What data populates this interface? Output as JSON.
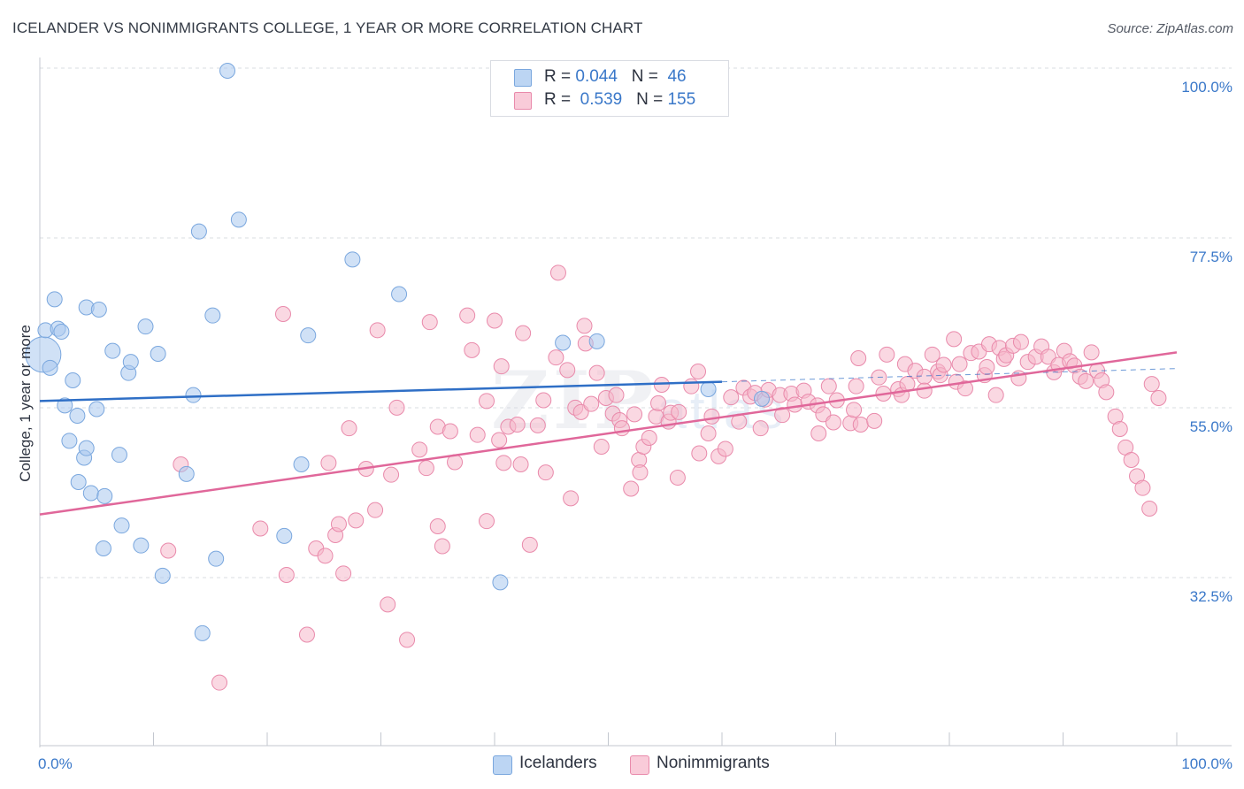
{
  "title": "ICELANDER VS NONIMMIGRANTS COLLEGE, 1 YEAR OR MORE CORRELATION CHART",
  "source": "Source: ZipAtlas.com",
  "watermark": {
    "zip": "ZIP",
    "atlas": "atlas"
  },
  "legend_top": [
    {
      "r_label": "R =",
      "r_value": "0.044",
      "n_label": "N =",
      "n_value": "46",
      "color": "#a9c8ef"
    },
    {
      "r_label": "R =",
      "r_value": "0.539",
      "n_label": "N =",
      "n_value": "155",
      "color": "#f5b8cb"
    }
  ],
  "legend_bottom": [
    {
      "label": "Icelanders",
      "color": "#a9c8ef"
    },
    {
      "label": "Nonimmigrants",
      "color": "#f5b8cb"
    }
  ],
  "chart_data": {
    "type": "scatter",
    "title": "ICELANDER VS NONIMMIGRANTS COLLEGE, 1 YEAR OR MORE CORRELATION CHART",
    "xlabel": "",
    "ylabel": "College, 1 year or more",
    "xlim": [
      0,
      100
    ],
    "ylim": [
      14,
      103
    ],
    "x_tick_labels": [
      "0.0%",
      "100.0%"
    ],
    "y_ticks": [
      32.5,
      55.0,
      77.5,
      100.0
    ],
    "y_tick_labels": [
      "32.5%",
      "55.0%",
      "77.5%",
      "100.0%"
    ],
    "grid": true,
    "colors": {
      "icelanders": "#3a78c9",
      "nonimmigrants": "#e0679a",
      "axis_label": "#3a78c9"
    },
    "series": [
      {
        "name": "Icelanders",
        "color": "#a9c8ef",
        "stroke": "#7aa7de",
        "trend": {
          "x": [
            0,
            60
          ],
          "y": [
            55.2,
            57.8
          ],
          "dashed_to": [
            100,
            59.6
          ],
          "color": "#2f6fc6"
        },
        "points": [
          [
            0.3,
            61.5,
            2.2
          ],
          [
            0.5,
            64.8,
            1
          ],
          [
            0.9,
            59.7,
            1
          ],
          [
            1.3,
            69.0,
            1
          ],
          [
            1.6,
            65.0,
            1
          ],
          [
            1.9,
            64.6,
            1
          ],
          [
            2.2,
            54.6,
            1
          ],
          [
            2.6,
            49.8,
            1
          ],
          [
            2.9,
            58.0,
            1
          ],
          [
            3.3,
            53.2,
            1
          ],
          [
            3.4,
            44.2,
            1
          ],
          [
            3.9,
            47.5,
            1
          ],
          [
            4.1,
            48.8,
            1
          ],
          [
            4.1,
            67.9,
            1
          ],
          [
            4.5,
            42.7,
            1
          ],
          [
            5.0,
            54.1,
            1
          ],
          [
            5.2,
            67.6,
            1
          ],
          [
            5.6,
            35.2,
            1
          ],
          [
            5.7,
            42.3,
            1
          ],
          [
            6.4,
            62.0,
            1
          ],
          [
            7.0,
            47.9,
            1
          ],
          [
            7.2,
            38.3,
            1
          ],
          [
            7.8,
            59.0,
            1
          ],
          [
            8.0,
            60.5,
            1
          ],
          [
            8.9,
            35.6,
            1
          ],
          [
            9.3,
            65.3,
            1
          ],
          [
            10.4,
            61.6,
            1
          ],
          [
            10.8,
            31.5,
            1
          ],
          [
            12.9,
            45.3,
            1
          ],
          [
            13.5,
            56.0,
            1
          ],
          [
            14.0,
            78.2,
            1
          ],
          [
            14.3,
            23.7,
            1
          ],
          [
            15.2,
            66.8,
            1
          ],
          [
            15.5,
            33.8,
            1
          ],
          [
            16.5,
            100.0,
            1
          ],
          [
            17.5,
            79.8,
            1
          ],
          [
            21.5,
            36.9,
            1
          ],
          [
            23.0,
            46.6,
            1
          ],
          [
            23.6,
            64.1,
            1
          ],
          [
            27.5,
            74.4,
            1
          ],
          [
            31.6,
            69.7,
            1
          ],
          [
            40.5,
            30.6,
            1
          ],
          [
            46.0,
            63.1,
            1
          ],
          [
            49.0,
            63.3,
            1
          ],
          [
            58.8,
            56.8,
            1
          ],
          [
            63.5,
            55.5,
            1
          ]
        ]
      },
      {
        "name": "Nonimmigrants",
        "color": "#f5b8cb",
        "stroke": "#e98aab",
        "trend": {
          "x": [
            0,
            100
          ],
          "y": [
            39.8,
            61.8
          ],
          "color": "#e0679a"
        },
        "points": [
          [
            11.3,
            34.9
          ],
          [
            12.4,
            46.6
          ],
          [
            15.8,
            17.0
          ],
          [
            19.4,
            37.9
          ],
          [
            21.4,
            67.0
          ],
          [
            21.7,
            31.6
          ],
          [
            23.5,
            23.5
          ],
          [
            24.3,
            35.2
          ],
          [
            25.1,
            34.2
          ],
          [
            25.4,
            46.8
          ],
          [
            26.0,
            37.0
          ],
          [
            26.3,
            38.5
          ],
          [
            26.7,
            31.8
          ],
          [
            27.2,
            51.5
          ],
          [
            27.8,
            39.0
          ],
          [
            28.7,
            46.0
          ],
          [
            29.5,
            40.4
          ],
          [
            29.7,
            64.8
          ],
          [
            30.6,
            27.6
          ],
          [
            30.9,
            45.2
          ],
          [
            31.4,
            54.3
          ],
          [
            32.3,
            22.8
          ],
          [
            33.4,
            48.6
          ],
          [
            34.0,
            46.1
          ],
          [
            34.3,
            65.9
          ],
          [
            35.0,
            51.7
          ],
          [
            35.0,
            38.2
          ],
          [
            35.4,
            35.5
          ],
          [
            36.1,
            51.1
          ],
          [
            36.5,
            46.9
          ],
          [
            37.6,
            66.8
          ],
          [
            38.0,
            62.1
          ],
          [
            38.5,
            50.6
          ],
          [
            39.3,
            55.2
          ],
          [
            39.3,
            38.9
          ],
          [
            40.0,
            66.1
          ],
          [
            40.4,
            49.9
          ],
          [
            40.6,
            59.9
          ],
          [
            40.8,
            46.8
          ],
          [
            41.2,
            51.7
          ],
          [
            42.0,
            52.0
          ],
          [
            42.3,
            46.6
          ],
          [
            42.5,
            64.4
          ],
          [
            43.1,
            35.7
          ],
          [
            43.8,
            51.9
          ],
          [
            44.3,
            55.3
          ],
          [
            44.5,
            45.5
          ],
          [
            45.4,
            61.1
          ],
          [
            45.6,
            72.6
          ],
          [
            46.4,
            59.4
          ],
          [
            46.7,
            42.0
          ],
          [
            47.1,
            54.3
          ],
          [
            47.6,
            53.7
          ],
          [
            47.9,
            65.4
          ],
          [
            48.0,
            63.0
          ],
          [
            48.5,
            54.8
          ],
          [
            49.0,
            59.0
          ],
          [
            49.4,
            49.0
          ],
          [
            49.8,
            55.6
          ],
          [
            50.4,
            53.5
          ],
          [
            50.7,
            56.0
          ],
          [
            51.0,
            52.6
          ],
          [
            51.2,
            51.5
          ],
          [
            52.0,
            43.3
          ],
          [
            52.3,
            53.4
          ],
          [
            52.7,
            47.2
          ],
          [
            52.8,
            45.5
          ],
          [
            53.1,
            49.0
          ],
          [
            53.6,
            50.2
          ],
          [
            54.2,
            53.1
          ],
          [
            54.4,
            54.9
          ],
          [
            54.7,
            57.4
          ],
          [
            55.3,
            52.4
          ],
          [
            55.5,
            53.6
          ],
          [
            56.1,
            44.8
          ],
          [
            56.2,
            53.7
          ],
          [
            57.3,
            57.2
          ],
          [
            57.9,
            59.2
          ],
          [
            58.0,
            48.1
          ],
          [
            58.8,
            50.8
          ],
          [
            59.1,
            53.1
          ],
          [
            59.7,
            47.7
          ],
          [
            60.3,
            48.7
          ],
          [
            60.8,
            55.7
          ],
          [
            61.5,
            52.4
          ],
          [
            61.9,
            57.0
          ],
          [
            62.5,
            55.8
          ],
          [
            62.9,
            56.3
          ],
          [
            63.4,
            51.5
          ],
          [
            63.8,
            55.4
          ],
          [
            64.1,
            56.7
          ],
          [
            65.1,
            56.0
          ],
          [
            65.3,
            53.3
          ],
          [
            66.1,
            56.2
          ],
          [
            66.4,
            54.7
          ],
          [
            67.2,
            56.6
          ],
          [
            67.6,
            55.1
          ],
          [
            68.4,
            54.6
          ],
          [
            68.5,
            50.8
          ],
          [
            68.9,
            53.4
          ],
          [
            69.4,
            57.2
          ],
          [
            69.8,
            52.3
          ],
          [
            70.1,
            55.3
          ],
          [
            71.3,
            52.2
          ],
          [
            71.6,
            54.0
          ],
          [
            71.8,
            57.2
          ],
          [
            72.0,
            61.0
          ],
          [
            72.2,
            52.0
          ],
          [
            73.4,
            52.5
          ],
          [
            73.8,
            58.4
          ],
          [
            74.2,
            56.2
          ],
          [
            74.5,
            61.5
          ],
          [
            75.5,
            56.8
          ],
          [
            75.8,
            56.0
          ],
          [
            76.1,
            60.2
          ],
          [
            76.3,
            57.5
          ],
          [
            77.0,
            59.3
          ],
          [
            77.8,
            58.5
          ],
          [
            77.8,
            56.6
          ],
          [
            78.5,
            61.5
          ],
          [
            79.0,
            59.2
          ],
          [
            79.2,
            58.7
          ],
          [
            79.5,
            60.1
          ],
          [
            80.4,
            63.6
          ],
          [
            80.6,
            57.8
          ],
          [
            80.9,
            60.2
          ],
          [
            81.4,
            56.9
          ],
          [
            81.9,
            61.7
          ],
          [
            82.6,
            61.9
          ],
          [
            83.1,
            58.7
          ],
          [
            83.3,
            59.8
          ],
          [
            83.5,
            62.9
          ],
          [
            84.1,
            56.0
          ],
          [
            84.4,
            62.4
          ],
          [
            84.8,
            60.9
          ],
          [
            85.0,
            61.4
          ],
          [
            85.6,
            62.7
          ],
          [
            86.1,
            58.3
          ],
          [
            86.3,
            63.2
          ],
          [
            86.9,
            60.5
          ],
          [
            87.6,
            61.2
          ],
          [
            88.1,
            62.6
          ],
          [
            88.7,
            61.2
          ],
          [
            89.2,
            59.1
          ],
          [
            89.6,
            60.1
          ],
          [
            90.1,
            62.0
          ],
          [
            90.6,
            60.6
          ],
          [
            91.0,
            60.0
          ],
          [
            91.5,
            58.5
          ],
          [
            92.0,
            57.9
          ],
          [
            92.5,
            61.8
          ],
          [
            93.0,
            59.3
          ],
          [
            93.4,
            58.0
          ],
          [
            93.8,
            56.4
          ],
          [
            94.6,
            53.1
          ],
          [
            95.0,
            51.4
          ],
          [
            95.5,
            48.9
          ],
          [
            96.0,
            47.2
          ],
          [
            96.5,
            45.0
          ],
          [
            97.0,
            43.4
          ],
          [
            97.6,
            40.6
          ],
          [
            97.8,
            57.5
          ],
          [
            98.4,
            55.6
          ]
        ]
      }
    ]
  }
}
